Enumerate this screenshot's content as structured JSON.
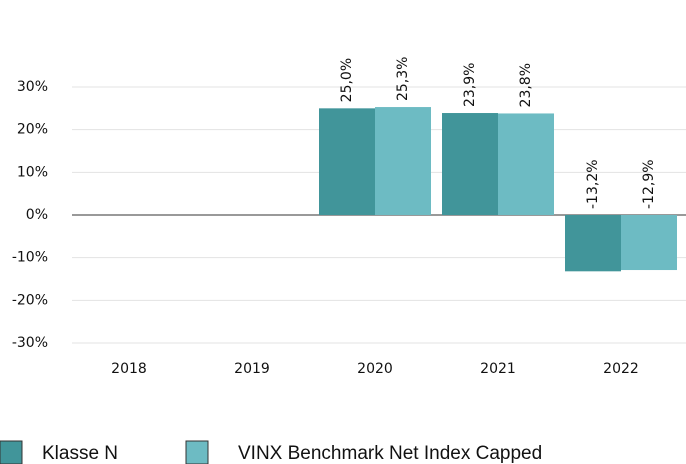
{
  "chart_data": {
    "type": "bar",
    "categories": [
      "2018",
      "2019",
      "2020",
      "2021",
      "2022"
    ],
    "series": [
      {
        "name": "Klasse N",
        "color": "#41959a",
        "values": [
          null,
          null,
          25.0,
          23.9,
          -13.2
        ],
        "value_labels": [
          null,
          null,
          "25,0%",
          "23,9%",
          "-13,2%"
        ]
      },
      {
        "name": "VINX Benchmark Net Index Capped",
        "color": "#6dbbc3",
        "values": [
          null,
          null,
          25.3,
          23.8,
          -12.9
        ],
        "value_labels": [
          null,
          null,
          "25,3%",
          "23,8%",
          "-12,9%"
        ]
      }
    ],
    "ylim": [
      -30,
      30
    ],
    "yticks": [
      {
        "value": -30,
        "label": "-30%"
      },
      {
        "value": -20,
        "label": "-20%"
      },
      {
        "value": -10,
        "label": "-10%"
      },
      {
        "value": 0,
        "label": "0%"
      },
      {
        "value": 10,
        "label": "10%"
      },
      {
        "value": 20,
        "label": "20%"
      },
      {
        "value": 30,
        "label": "30%"
      }
    ],
    "grid": true,
    "legend": "bottom"
  }
}
